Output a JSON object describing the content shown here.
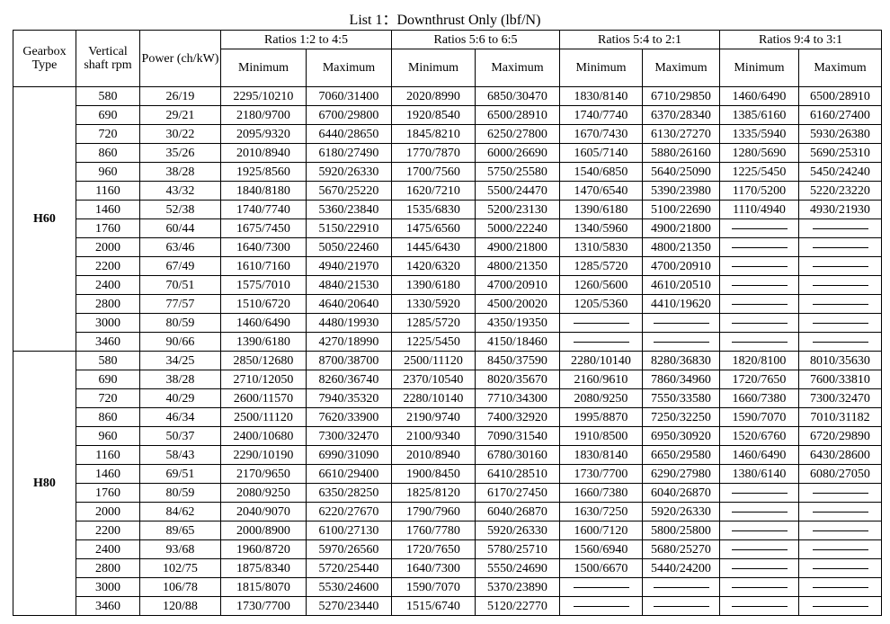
{
  "title": "List 1：Downthrust Only (lbf/N)",
  "table": {
    "headers": {
      "gearbox_type": "Gearbox Type",
      "rpm": "Vertical shaft rpm",
      "power": "Power (ch/kW)",
      "ratios": [
        "Ratios 1:2 to 4:5",
        "Ratios 5:6 to 6:5",
        "Ratios 5:4 to 2:1",
        "Ratios 9:4 to 3:1"
      ],
      "sub": [
        "Minimum",
        "Maximum",
        "Minimum",
        "Maximum",
        "Minimum",
        "Maximum",
        "Minimum",
        "Maximum"
      ]
    },
    "groups": [
      {
        "gearbox": "H60",
        "rows": [
          [
            "580",
            "26/19",
            "2295/10210",
            "7060/31400",
            "2020/8990",
            "6850/30470",
            "1830/8140",
            "6710/29850",
            "1460/6490",
            "6500/28910"
          ],
          [
            "690",
            "29/21",
            "2180/9700",
            "6700/29800",
            "1920/8540",
            "6500/28910",
            "1740/7740",
            "6370/28340",
            "1385/6160",
            "6160/27400"
          ],
          [
            "720",
            "30/22",
            "2095/9320",
            "6440/28650",
            "1845/8210",
            "6250/27800",
            "1670/7430",
            "6130/27270",
            "1335/5940",
            "5930/26380"
          ],
          [
            "860",
            "35/26",
            "2010/8940",
            "6180/27490",
            "1770/7870",
            "6000/26690",
            "1605/7140",
            "5880/26160",
            "1280/5690",
            "5690/25310"
          ],
          [
            "960",
            "38/28",
            "1925/8560",
            "5920/26330",
            "1700/7560",
            "5750/25580",
            "1540/6850",
            "5640/25090",
            "1225/5450",
            "5450/24240"
          ],
          [
            "1160",
            "43/32",
            "1840/8180",
            "5670/25220",
            "1620/7210",
            "5500/24470",
            "1470/6540",
            "5390/23980",
            "1170/5200",
            "5220/23220"
          ],
          [
            "1460",
            "52/38",
            "1740/7740",
            "5360/23840",
            "1535/6830",
            "5200/23130",
            "1390/6180",
            "5100/22690",
            "1110/4940",
            "4930/21930"
          ],
          [
            "1760",
            "60/44",
            "1675/7450",
            "5150/22910",
            "1475/6560",
            "5000/22240",
            "1340/5960",
            "4900/21800",
            null,
            null
          ],
          [
            "2000",
            "63/46",
            "1640/7300",
            "5050/22460",
            "1445/6430",
            "4900/21800",
            "1310/5830",
            "4800/21350",
            null,
            null
          ],
          [
            "2200",
            "67/49",
            "1610/7160",
            "4940/21970",
            "1420/6320",
            "4800/21350",
            "1285/5720",
            "4700/20910",
            null,
            null
          ],
          [
            "2400",
            "70/51",
            "1575/7010",
            "4840/21530",
            "1390/6180",
            "4700/20910",
            "1260/5600",
            "4610/20510",
            null,
            null
          ],
          [
            "2800",
            "77/57",
            "1510/6720",
            "4640/20640",
            "1330/5920",
            "4500/20020",
            "1205/5360",
            "4410/19620",
            null,
            null
          ],
          [
            "3000",
            "80/59",
            "1460/6490",
            "4480/19930",
            "1285/5720",
            "4350/19350",
            null,
            null,
            null,
            null
          ],
          [
            "3460",
            "90/66",
            "1390/6180",
            "4270/18990",
            "1225/5450",
            "4150/18460",
            null,
            null,
            null,
            null
          ]
        ]
      },
      {
        "gearbox": "H80",
        "rows": [
          [
            "580",
            "34/25",
            "2850/12680",
            "8700/38700",
            "2500/11120",
            "8450/37590",
            "2280/10140",
            "8280/36830",
            "1820/8100",
            "8010/35630"
          ],
          [
            "690",
            "38/28",
            "2710/12050",
            "8260/36740",
            "2370/10540",
            "8020/35670",
            "2160/9610",
            "7860/34960",
            "1720/7650",
            "7600/33810"
          ],
          [
            "720",
            "40/29",
            "2600/11570",
            "7940/35320",
            "2280/10140",
            "7710/34300",
            "2080/9250",
            "7550/33580",
            "1660/7380",
            "7300/32470"
          ],
          [
            "860",
            "46/34",
            "2500/11120",
            "7620/33900",
            "2190/9740",
            "7400/32920",
            "1995/8870",
            "7250/32250",
            "1590/7070",
            "7010/31182"
          ],
          [
            "960",
            "50/37",
            "2400/10680",
            "7300/32470",
            "2100/9340",
            "7090/31540",
            "1910/8500",
            "6950/30920",
            "1520/6760",
            "6720/29890"
          ],
          [
            "1160",
            "58/43",
            "2290/10190",
            "6990/31090",
            "2010/8940",
            "6780/30160",
            "1830/8140",
            "6650/29580",
            "1460/6490",
            "6430/28600"
          ],
          [
            "1460",
            "69/51",
            "2170/9650",
            "6610/29400",
            "1900/8450",
            "6410/28510",
            "1730/7700",
            "6290/27980",
            "1380/6140",
            "6080/27050"
          ],
          [
            "1760",
            "80/59",
            "2080/9250",
            "6350/28250",
            "1825/8120",
            "6170/27450",
            "1660/7380",
            "6040/26870",
            null,
            null
          ],
          [
            "2000",
            "84/62",
            "2040/9070",
            "6220/27670",
            "1790/7960",
            "6040/26870",
            "1630/7250",
            "5920/26330",
            null,
            null
          ],
          [
            "2200",
            "89/65",
            "2000/8900",
            "6100/27130",
            "1760/7780",
            "5920/26330",
            "1600/7120",
            "5800/25800",
            null,
            null
          ],
          [
            "2400",
            "93/68",
            "1960/8720",
            "5970/26560",
            "1720/7650",
            "5780/25710",
            "1560/6940",
            "5680/25270",
            null,
            null
          ],
          [
            "2800",
            "102/75",
            "1875/8340",
            "5720/25440",
            "1640/7300",
            "5550/24690",
            "1500/6670",
            "5440/24200",
            null,
            null
          ],
          [
            "3000",
            "106/78",
            "1815/8070",
            "5530/24600",
            "1590/7070",
            "5370/23890",
            null,
            null,
            null,
            null
          ],
          [
            "3460",
            "120/88",
            "1730/7700",
            "5270/23440",
            "1515/6740",
            "5120/22770",
            null,
            null,
            null,
            null
          ]
        ]
      }
    ]
  }
}
